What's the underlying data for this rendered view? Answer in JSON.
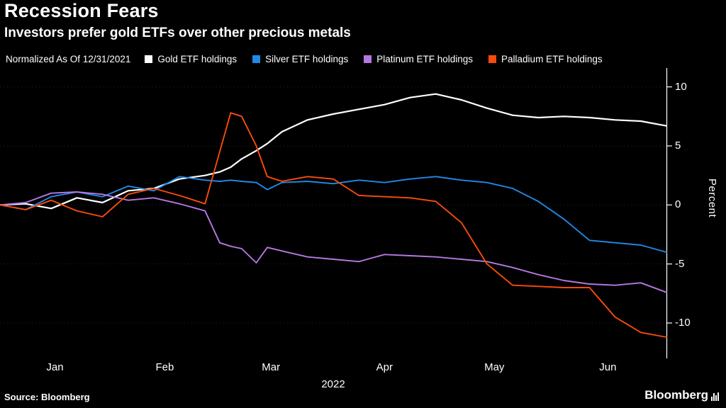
{
  "header": {
    "title": "Recession Fears",
    "subtitle": "Investors prefer gold ETFs over other precious metals"
  },
  "legend": {
    "note": "Normalized As Of 12/31/2021",
    "items": [
      {
        "label": "Gold ETF holdings",
        "color": "#ffffff"
      },
      {
        "label": "Silver ETF holdings",
        "color": "#1f8ae8"
      },
      {
        "label": "Platinum ETF holdings",
        "color": "#b578e2"
      },
      {
        "label": "Palladium ETF holdings",
        "color": "#fa4b0a"
      }
    ]
  },
  "chart_data": {
    "type": "line",
    "title": "Recession Fears",
    "subtitle": "Investors prefer gold ETFs over other precious metals",
    "note": "Normalized As Of 12/31/2021",
    "x_unit": "days since 2021-12-31",
    "x": [
      0,
      7,
      14,
      21,
      28,
      35,
      42,
      49,
      56,
      60,
      63,
      66,
      70,
      73,
      77,
      84,
      91,
      98,
      105,
      112,
      119,
      126,
      133,
      140,
      147,
      154,
      161,
      168,
      175,
      182
    ],
    "series": [
      {
        "name": "Gold ETF holdings",
        "color": "#ffffff",
        "values": [
          0,
          0.1,
          -0.3,
          0.6,
          0.2,
          1.2,
          1.4,
          2.2,
          2.5,
          2.8,
          3.2,
          3.9,
          4.6,
          5.2,
          6.2,
          7.2,
          7.7,
          8.1,
          8.5,
          9.1,
          9.4,
          8.9,
          8.2,
          7.6,
          7.4,
          7.5,
          7.4,
          7.2,
          7.1,
          6.7
        ]
      },
      {
        "name": "Silver ETF holdings",
        "color": "#1f8ae8",
        "values": [
          0,
          -0.4,
          0.7,
          1.1,
          0.7,
          1.6,
          1.2,
          2.4,
          2.1,
          2.0,
          2.1,
          2.0,
          1.9,
          1.3,
          1.9,
          2.0,
          1.8,
          2.1,
          1.9,
          2.2,
          2.4,
          2.1,
          1.9,
          1.4,
          0.3,
          -1.2,
          -3.0,
          -3.2,
          -3.4,
          -4.0
        ]
      },
      {
        "name": "Platinum ETF holdings",
        "color": "#b578e2",
        "values": [
          0,
          0.2,
          1.0,
          1.1,
          0.9,
          0.4,
          0.6,
          0.1,
          -0.5,
          -3.2,
          -3.5,
          -3.7,
          -4.9,
          -3.6,
          -3.9,
          -4.4,
          -4.6,
          -4.8,
          -4.2,
          -4.3,
          -4.4,
          -4.6,
          -4.8,
          -5.3,
          -5.9,
          -6.4,
          -6.7,
          -6.8,
          -6.6,
          -7.4
        ]
      },
      {
        "name": "Palladium ETF holdings",
        "color": "#fa4b0a",
        "values": [
          0,
          -0.4,
          0.4,
          -0.5,
          -1.0,
          0.9,
          1.4,
          0.8,
          0.1,
          4.5,
          7.8,
          7.5,
          5.0,
          2.4,
          2.0,
          2.4,
          2.2,
          0.8,
          0.7,
          0.6,
          0.3,
          -1.5,
          -5.0,
          -6.8,
          -6.9,
          -7.0,
          -7.0,
          -9.5,
          -10.8,
          -11.2
        ]
      }
    ],
    "xticks": [
      {
        "day": 15,
        "label": "Jan"
      },
      {
        "day": 45,
        "label": "Feb"
      },
      {
        "day": 74,
        "label": "Mar"
      },
      {
        "day": 105,
        "label": "Apr"
      },
      {
        "day": 135,
        "label": "May"
      },
      {
        "day": 166,
        "label": "Jun"
      }
    ],
    "x_axis_year": "2022",
    "yticks": [
      10,
      5,
      0,
      -5,
      -10
    ],
    "ylabel": "Percent",
    "ylim": [
      -13.0,
      11.6
    ],
    "xlim_days": [
      0,
      182
    ],
    "grid": "faint dotted horizontal at yticks",
    "legend_position": "top",
    "y_axis_side": "right"
  },
  "footer": {
    "source": "Source:  Bloomberg",
    "brand": "Bloomberg"
  }
}
